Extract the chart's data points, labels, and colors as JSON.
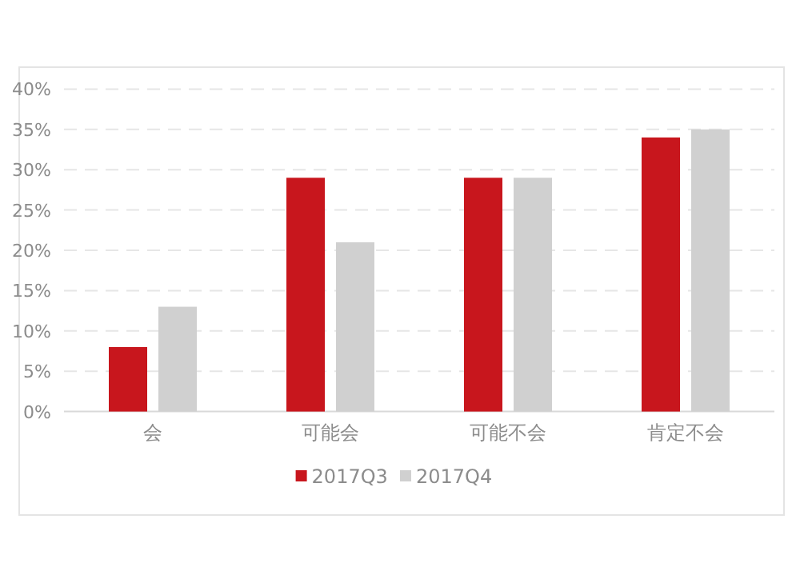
{
  "chart_data": {
    "type": "bar",
    "categories": [
      "会",
      "可能会",
      "可能不会",
      "肯定不会"
    ],
    "series": [
      {
        "name": "2017Q3",
        "color": "#c8161d",
        "values": [
          8,
          29,
          29,
          34
        ]
      },
      {
        "name": "2017Q4",
        "color": "#d0d0d0",
        "values": [
          13,
          21,
          29,
          35
        ]
      }
    ],
    "ylim": [
      0,
      40
    ],
    "yticks": [
      {
        "value": 0,
        "label": "0%"
      },
      {
        "value": 5,
        "label": "5%"
      },
      {
        "value": 10,
        "label": "10%"
      },
      {
        "value": 15,
        "label": "15%"
      },
      {
        "value": 20,
        "label": "20%"
      },
      {
        "value": 25,
        "label": "25%"
      },
      {
        "value": 30,
        "label": "30%"
      },
      {
        "value": 35,
        "label": "35%"
      },
      {
        "value": 40,
        "label": "40%"
      }
    ],
    "grid": "y",
    "legend": "bottom"
  }
}
